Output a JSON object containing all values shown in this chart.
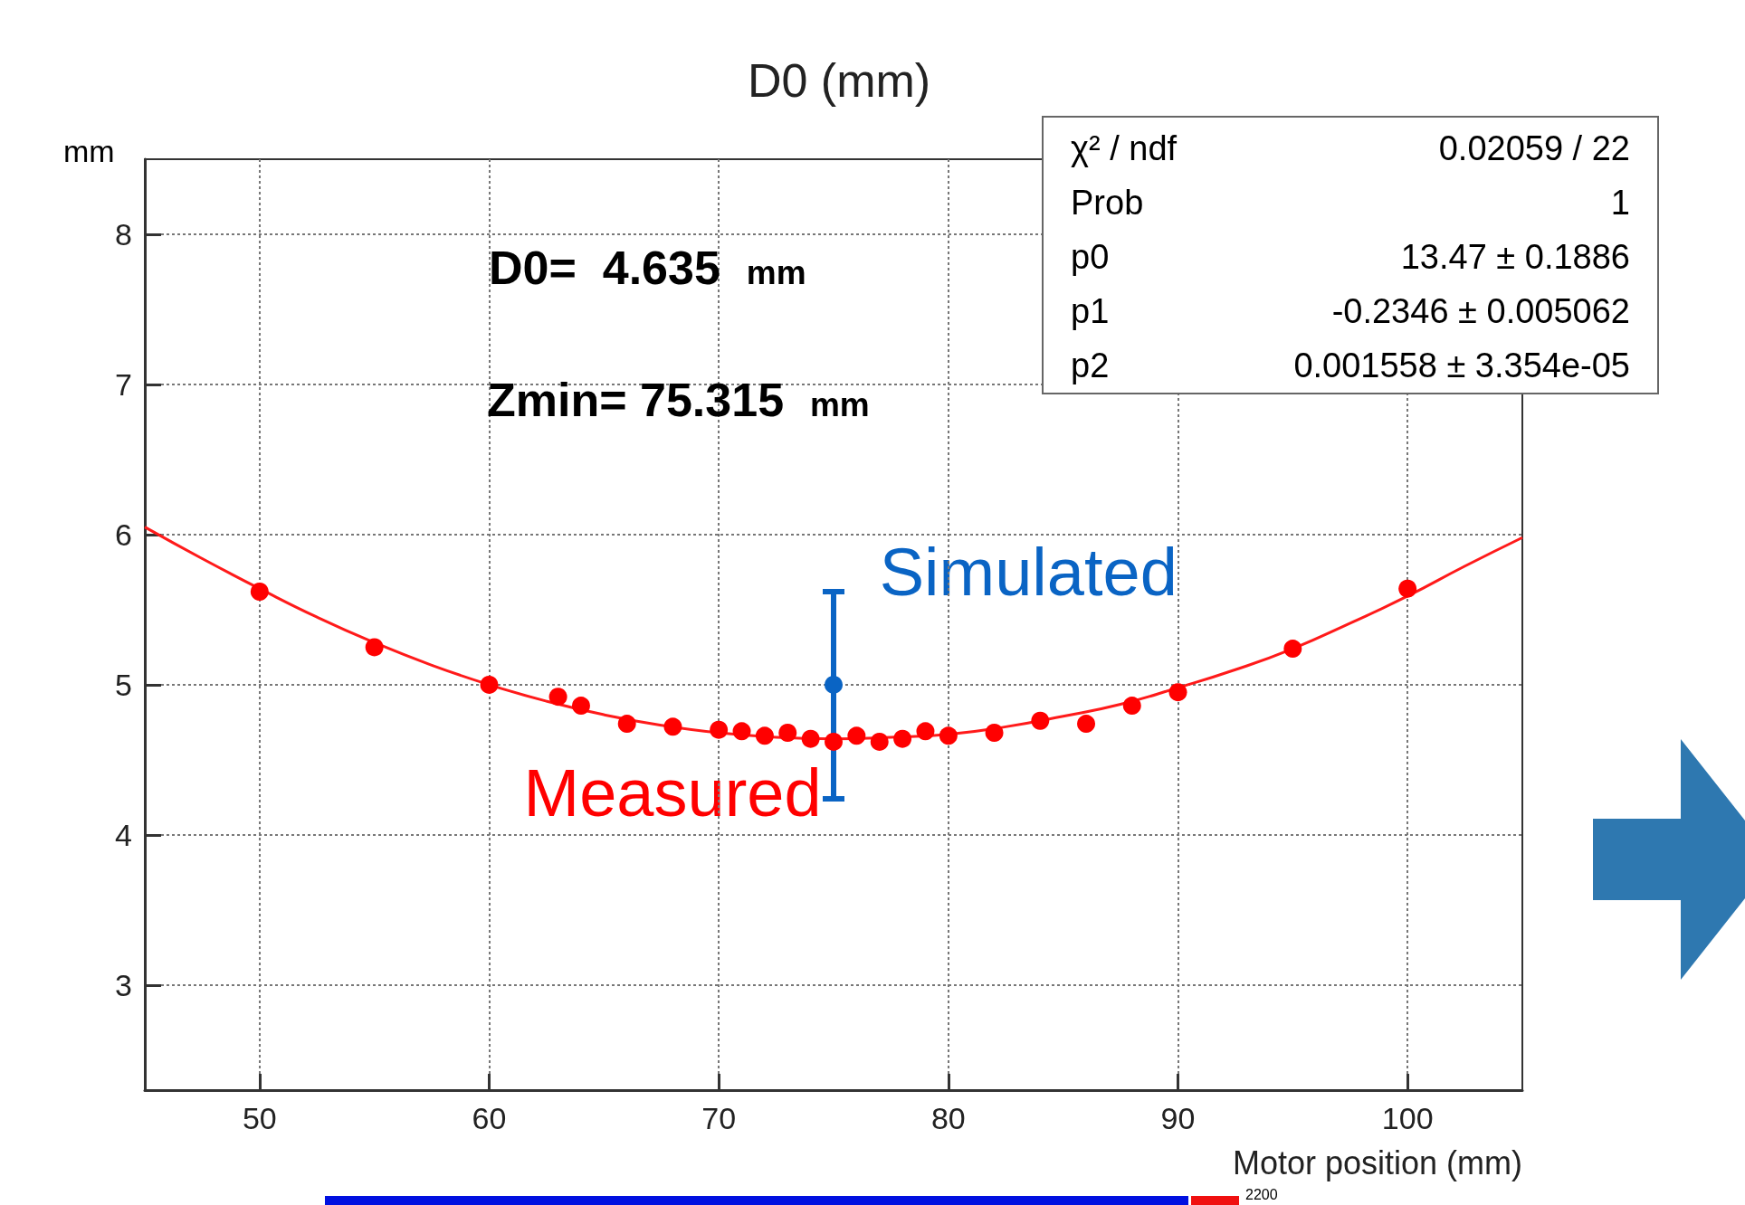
{
  "chart_data": {
    "type": "scatter",
    "title": "D0 (mm)",
    "xlabel": "Motor position (mm)",
    "ylabel": "mm",
    "xlim": [
      45,
      105
    ],
    "xticks": [
      50,
      60,
      70,
      80,
      90,
      100
    ],
    "ylim": [
      2.3,
      8.5
    ],
    "yticks": [
      3,
      4,
      5,
      6,
      7,
      8
    ],
    "grid": true,
    "legend": false,
    "annotations": [
      "D0=  4.635  mm",
      "Zmin= 75.315  mm",
      "χ² / ndf",
      "0.02059 / 22",
      "Prob",
      "1",
      "p0",
      "13.47 ± 0.1886",
      "p1",
      "-0.2346 ± 0.005062",
      "p2",
      "0.001558 ± 3.354e-05",
      "2200"
    ],
    "series": [
      {
        "type": "line",
        "marker": "none",
        "color": "#ff1a1a",
        "x": [
          45,
          47.5,
          50,
          52.5,
          55,
          57.5,
          60,
          62.5,
          65,
          67.5,
          70,
          72.5,
          75,
          77.5,
          80,
          82.5,
          85,
          87.5,
          90,
          92.5,
          95,
          97.5,
          100,
          102.5,
          105
        ],
        "values": [
          6.05,
          5.84,
          5.64,
          5.45,
          5.28,
          5.13,
          5.0,
          4.89,
          4.8,
          4.73,
          4.68,
          4.65,
          4.64,
          4.65,
          4.67,
          4.72,
          4.79,
          4.87,
          4.98,
          5.1,
          5.24,
          5.41,
          5.59,
          5.79,
          5.98
        ]
      },
      {
        "marker": "circle",
        "name": "Measured",
        "color": "#ff0000",
        "x": [
          50,
          55,
          60,
          63,
          64,
          66,
          68,
          70,
          71,
          72,
          73,
          74,
          75,
          76,
          77,
          78,
          79,
          80,
          82,
          84,
          86,
          88,
          90,
          95,
          100
        ],
        "values": [
          5.62,
          5.25,
          5.0,
          4.92,
          4.86,
          4.74,
          4.72,
          4.7,
          4.69,
          4.66,
          4.68,
          4.64,
          4.62,
          4.66,
          4.62,
          4.64,
          4.69,
          4.66,
          4.68,
          4.76,
          4.74,
          4.86,
          4.95,
          5.24,
          5.64
        ]
      },
      {
        "marker": "circle",
        "name": "Simulated",
        "color": "#0a64c4",
        "x": [
          75
        ],
        "values": [
          5.0
        ],
        "errors": [
          [
            4.24,
            5.62
          ]
        ]
      }
    ]
  }
}
